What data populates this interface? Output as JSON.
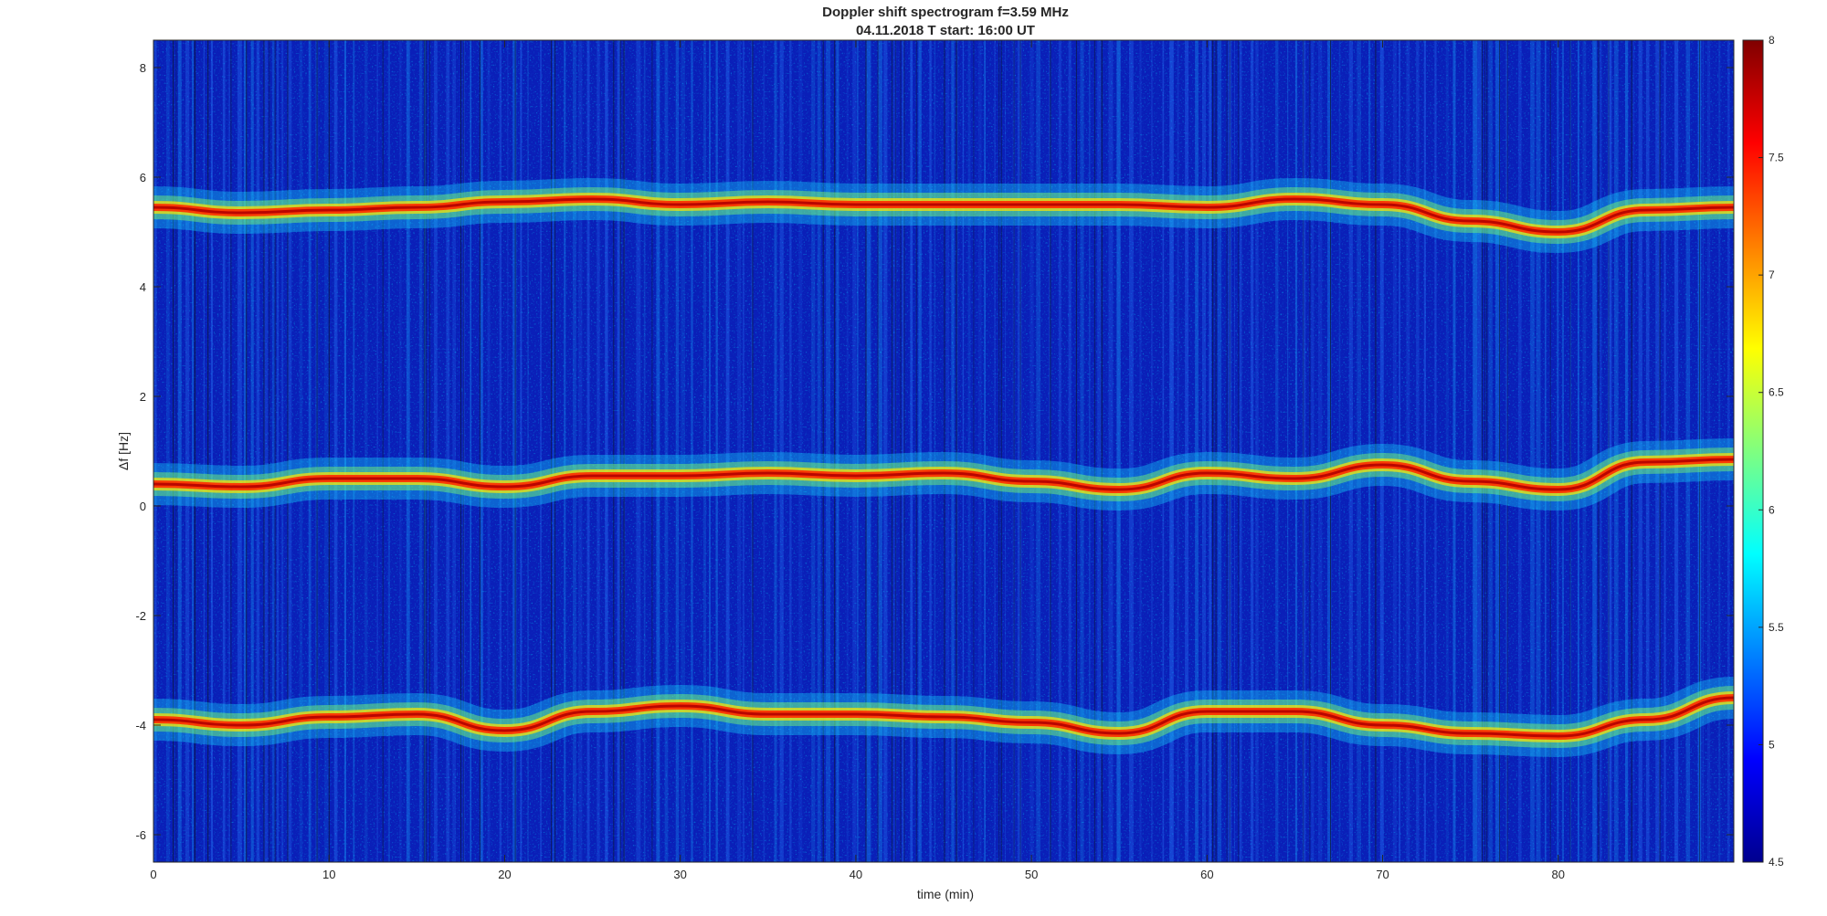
{
  "title": "Doppler shift spectrogram f=3.59 MHz",
  "subtitle": "04.11.2018   T start: 16:00 UT",
  "chart_data": {
    "type": "heatmap",
    "title": "Doppler shift spectrogram f=3.59 MHz",
    "subtitle": "04.11.2018   T start: 16:00 UT",
    "xlabel": "time (min)",
    "ylabel": "Δf [Hz]",
    "xlim": [
      0,
      90
    ],
    "ylim": [
      -6.5,
      8.5
    ],
    "x_ticks": [
      0,
      10,
      20,
      30,
      40,
      50,
      60,
      70,
      80
    ],
    "y_ticks": [
      -6,
      -4,
      -2,
      0,
      2,
      4,
      6,
      8
    ],
    "colorbar": {
      "colormap": "jet",
      "range": [
        4.5,
        8
      ],
      "ticks": [
        4.5,
        5,
        5.5,
        6,
        6.5,
        7,
        7.5,
        8
      ]
    },
    "traces": [
      {
        "time_min": [
          0,
          5,
          10,
          15,
          20,
          25,
          30,
          35,
          40,
          45,
          50,
          55,
          60,
          65,
          70,
          75,
          80,
          85,
          90
        ],
        "df_hz": [
          5.45,
          5.35,
          5.4,
          5.45,
          5.55,
          5.6,
          5.5,
          5.55,
          5.5,
          5.5,
          5.5,
          5.5,
          5.45,
          5.6,
          5.5,
          5.2,
          5.0,
          5.4,
          5.45
        ]
      },
      {
        "time_min": [
          0,
          5,
          10,
          15,
          20,
          25,
          30,
          35,
          40,
          45,
          50,
          55,
          60,
          65,
          70,
          75,
          80,
          85,
          90
        ],
        "df_hz": [
          0.4,
          0.35,
          0.5,
          0.5,
          0.35,
          0.55,
          0.55,
          0.6,
          0.55,
          0.6,
          0.45,
          0.3,
          0.6,
          0.5,
          0.75,
          0.45,
          0.3,
          0.8,
          0.85
        ]
      },
      {
        "time_min": [
          0,
          5,
          10,
          15,
          20,
          25,
          30,
          35,
          40,
          45,
          50,
          55,
          60,
          65,
          70,
          75,
          80,
          85,
          90
        ],
        "df_hz": [
          -3.9,
          -4.0,
          -3.85,
          -3.8,
          -4.1,
          -3.75,
          -3.65,
          -3.8,
          -3.8,
          -3.85,
          -3.95,
          -4.15,
          -3.75,
          -3.75,
          -4.0,
          -4.15,
          -4.2,
          -3.9,
          -3.5
        ]
      }
    ]
  }
}
